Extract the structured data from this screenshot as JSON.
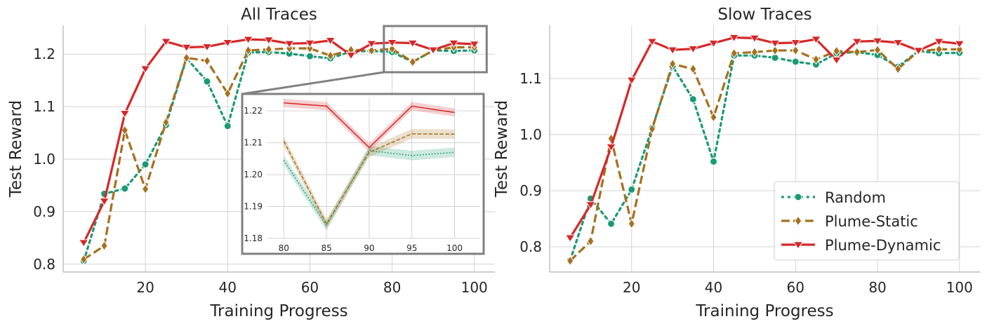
{
  "chart_data": [
    {
      "type": "line",
      "title": "All Traces",
      "xlabel": "Training Progress",
      "ylabel": "Test Reward",
      "xlim": [
        0,
        105
      ],
      "ylim": [
        0.785,
        1.255
      ],
      "xticks": [
        20,
        40,
        60,
        80,
        100
      ],
      "yticks": [
        0.8,
        0.9,
        1.0,
        1.1,
        1.2
      ],
      "xtick_labels": [
        "20",
        "40",
        "60",
        "80",
        "100"
      ],
      "ytick_labels": [
        "0.8",
        "0.9",
        "1.0",
        "1.1",
        "1.2"
      ],
      "x": [
        5,
        10,
        15,
        20,
        25,
        30,
        35,
        40,
        45,
        50,
        55,
        60,
        65,
        70,
        75,
        80,
        85,
        90,
        95,
        100
      ],
      "series": [
        {
          "name": "Random",
          "color": "#1a9a74",
          "style": "dotted",
          "marker": "circle",
          "values": [
            0.806,
            0.934,
            0.944,
            0.99,
            1.065,
            1.192,
            1.148,
            1.063,
            1.203,
            1.204,
            1.201,
            1.196,
            1.192,
            1.205,
            1.206,
            1.204,
            1.185,
            1.207,
            1.206,
            1.207
          ]
        },
        {
          "name": "Plume-Static",
          "color": "#a5701e",
          "style": "dashed",
          "marker": "diamond",
          "values": [
            0.809,
            0.835,
            1.055,
            0.943,
            1.07,
            1.193,
            1.187,
            1.125,
            1.207,
            1.209,
            1.211,
            1.211,
            1.197,
            1.208,
            1.207,
            1.21,
            1.185,
            1.207,
            1.213,
            1.213
          ]
        },
        {
          "name": "Plume-Dynamic",
          "color": "#d62728",
          "style": "solid",
          "marker": "triangle-down",
          "values": [
            0.841,
            0.92,
            1.087,
            1.172,
            1.224,
            1.213,
            1.214,
            1.222,
            1.228,
            1.227,
            1.22,
            1.221,
            1.226,
            1.198,
            1.22,
            1.222,
            1.221,
            1.208,
            1.221,
            1.219
          ]
        }
      ],
      "inset": {
        "xlim": [
          78,
          103
        ],
        "ylim": [
          1.18,
          1.224
        ],
        "xticks": [
          80,
          85,
          90,
          95,
          100
        ],
        "yticks": [
          1.18,
          1.19,
          1.2,
          1.21,
          1.22
        ],
        "xtick_labels": [
          "80",
          "85",
          "90",
          "95",
          "100"
        ],
        "ytick_labels": [
          "1.18",
          "1.19",
          "1.20",
          "1.21",
          "1.22"
        ],
        "x": [
          80,
          85,
          90,
          95,
          100
        ],
        "series": [
          {
            "name": "Random",
            "values": [
              1.2045,
              1.184,
              1.2075,
              1.206,
              1.207
            ],
            "band": 0.0015
          },
          {
            "name": "Plume-Static",
            "values": [
              1.2105,
              1.1845,
              1.207,
              1.2128,
              1.2127
            ],
            "band": 0.0015
          },
          {
            "name": "Plume-Dynamic",
            "values": [
              1.2225,
              1.2215,
              1.2085,
              1.2215,
              1.2195
            ],
            "band": 0.0013
          }
        ]
      }
    },
    {
      "type": "line",
      "title": "Slow Traces",
      "xlabel": "Training Progress",
      "ylabel": "Test Reward",
      "xlim": [
        0,
        105
      ],
      "ylim": [
        0.755,
        1.195
      ],
      "xticks": [
        20,
        40,
        60,
        80,
        100
      ],
      "yticks": [
        0.8,
        0.9,
        1.0,
        1.1
      ],
      "xtick_labels": [
        "20",
        "40",
        "60",
        "80",
        "100"
      ],
      "ytick_labels": [
        "0.8",
        "0.9",
        "1.0",
        "1.1"
      ],
      "x": [
        5,
        10,
        15,
        20,
        25,
        30,
        35,
        40,
        45,
        50,
        55,
        60,
        65,
        70,
        75,
        80,
        85,
        90,
        95,
        100
      ],
      "series": [
        {
          "name": "Random",
          "color": "#1a9a74",
          "style": "dotted",
          "marker": "circle",
          "values": [
            0.776,
            0.886,
            0.841,
            0.902,
            1.012,
            1.122,
            1.063,
            0.952,
            1.141,
            1.141,
            1.137,
            1.13,
            1.125,
            1.145,
            1.147,
            1.142,
            1.121,
            1.149,
            1.145,
            1.146
          ]
        },
        {
          "name": "Plume-Static",
          "color": "#a5701e",
          "style": "dashed",
          "marker": "diamond",
          "values": [
            0.775,
            0.81,
            0.993,
            0.841,
            1.01,
            1.126,
            1.117,
            1.031,
            1.145,
            1.147,
            1.15,
            1.15,
            1.134,
            1.149,
            1.147,
            1.151,
            1.117,
            1.149,
            1.152,
            1.152
          ]
        },
        {
          "name": "Plume-Dynamic",
          "color": "#d62728",
          "style": "solid",
          "marker": "triangle-down",
          "values": [
            0.816,
            0.875,
            0.978,
            1.097,
            1.166,
            1.151,
            1.153,
            1.163,
            1.173,
            1.172,
            1.163,
            1.164,
            1.17,
            1.133,
            1.166,
            1.167,
            1.164,
            1.15,
            1.166,
            1.162
          ]
        }
      ],
      "legend": {
        "location": "lower-right",
        "entries": [
          "Random",
          "Plume-Static",
          "Plume-Dynamic"
        ]
      }
    }
  ]
}
